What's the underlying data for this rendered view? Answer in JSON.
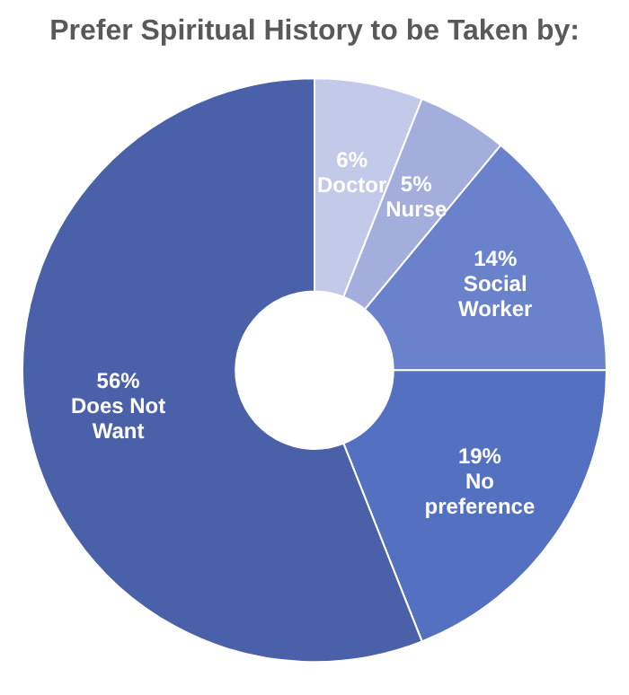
{
  "chart_data": {
    "type": "donut",
    "title": "Prefer Spiritual History to be Taken by:",
    "categories": [
      "Doctor",
      "Nurse",
      "Social Worker",
      "No preference",
      "Does Not Want"
    ],
    "values": [
      6,
      5,
      14,
      19,
      56
    ],
    "colors": [
      "#c3c9e8",
      "#a3aedc",
      "#6a82cc",
      "#5470c0",
      "#4a60a8"
    ],
    "value_labels": [
      "6%",
      "5%",
      "14%",
      "19%",
      "56%"
    ],
    "legend": false
  }
}
